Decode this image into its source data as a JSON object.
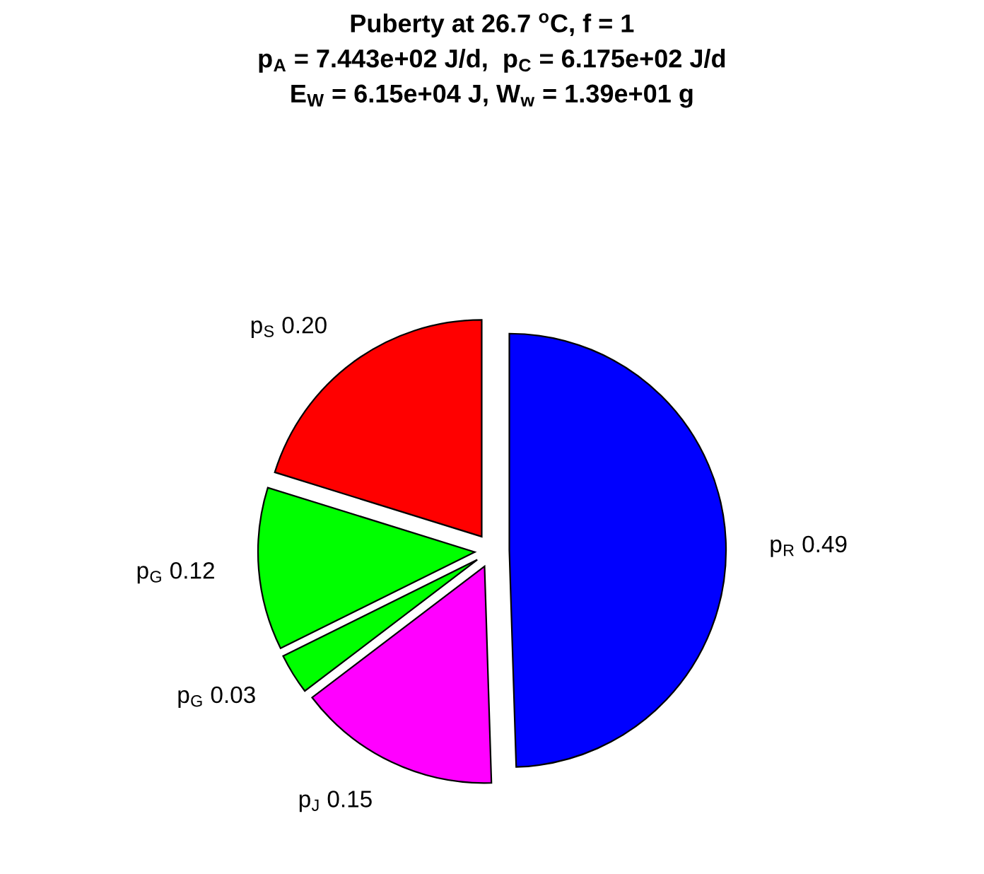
{
  "chart_data": {
    "type": "pie",
    "title": "Puberty at 26.7 $^{o}$C, f = 1\np$_{A}$ = 7.443e+02 J/d,  p$_{C}$ = 6.175e+02 J/d\nE$_{W}$ = 6.15e+04 J, W$_{w}$ = 1.39e+01 g",
    "categories": [
      "p$_{R}$ 0.49",
      "p$_{J}$ 0.15",
      "p$_{G}$ 0.03",
      "p$_{G}$ 0.12",
      "p$_{S}$ 0.20"
    ],
    "values": [
      0.49,
      0.15,
      0.03,
      0.12,
      0.2
    ],
    "colors": [
      "#0000ff",
      "#ff00ff",
      "#00ff00",
      "#00ff00",
      "#ff0000"
    ],
    "legend": false
  }
}
